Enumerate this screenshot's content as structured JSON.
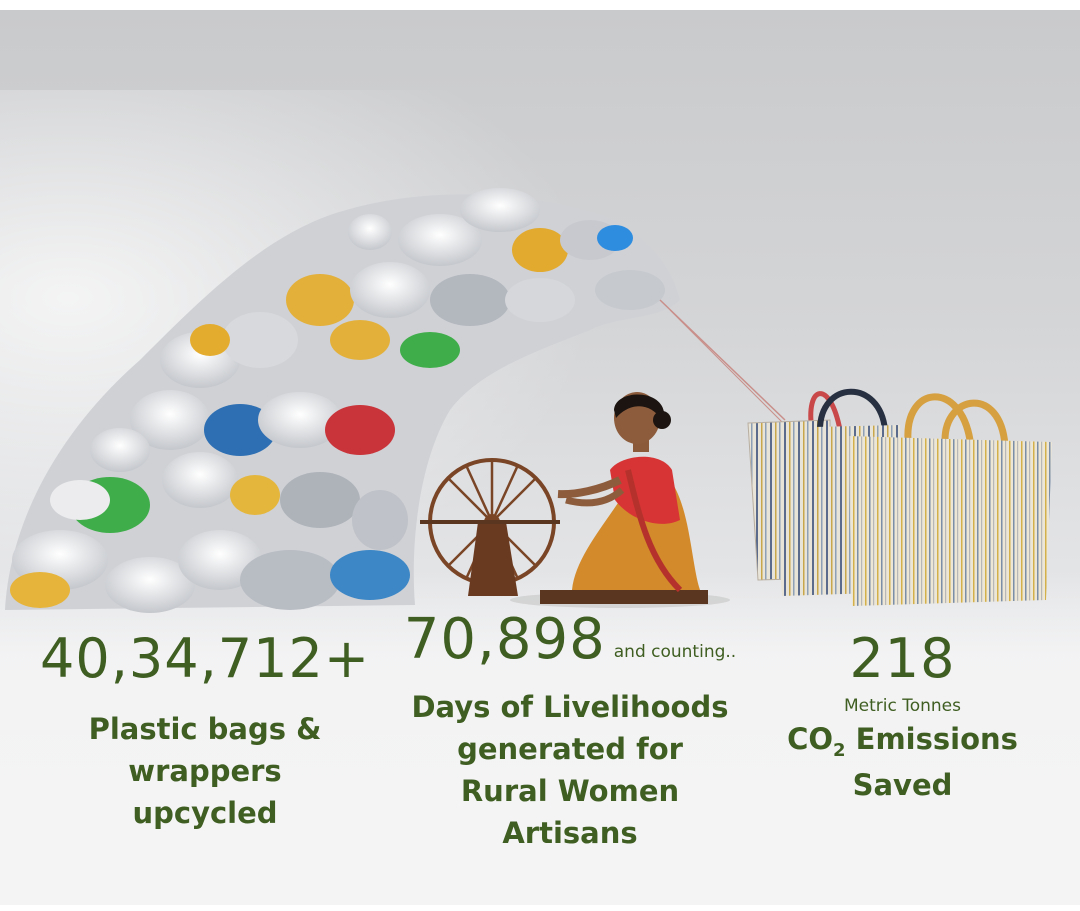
{
  "stats": [
    {
      "value": "40,34,712+",
      "description_lines": [
        "Plastic bags &",
        "wrappers",
        "upcycled"
      ]
    },
    {
      "value": "70,898",
      "suffix": "and counting..",
      "description_lines": [
        "Days of Livelihoods",
        "generated for",
        "Rural Women",
        "Artisans"
      ]
    },
    {
      "value": "218",
      "unit": "Metric Tonnes",
      "co2_prefix": "CO",
      "co2_subscript": "2",
      "co2_suffix": " Emissions",
      "last_line": "Saved"
    }
  ],
  "colors": {
    "text_green": "#3f5e21",
    "background_top": "#c9cacc",
    "background_bottom": "#f4f4f5",
    "sari_orange": "#e3a13a",
    "wheel_brown": "#7a4526"
  },
  "illustration": {
    "elements": [
      "plastic-waste-wave",
      "spinning-wheel",
      "woman-artisan",
      "woven-tote-bags"
    ]
  }
}
